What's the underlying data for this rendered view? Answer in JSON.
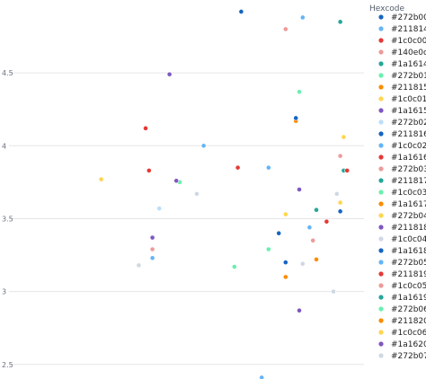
{
  "chart_data": {
    "type": "scatter",
    "title": "",
    "xlabel": "",
    "ylabel": "",
    "ylim": [
      2.4,
      5.0
    ],
    "y_ticks": [
      2.5,
      3,
      3.5,
      4,
      4.5
    ],
    "y_tick_labels": [
      "2.5",
      "3",
      "3.5",
      "4",
      "4.5"
    ],
    "x_axis_shown": false,
    "grid": "horizontal",
    "legend": {
      "title": "Hexcode",
      "placement": "right"
    },
    "series": [
      {
        "name": "#272b00",
        "color": "#1565c0",
        "x": [
          0.68
        ],
        "y": [
          4.92
        ]
      },
      {
        "name": "#211814",
        "color": "#64b5f6",
        "x": [
          0.86
        ],
        "y": [
          4.88
        ]
      },
      {
        "name": "#1c0c00",
        "color": "#e53935",
        "x": [
          0.4
        ],
        "y": [
          4.12
        ]
      },
      {
        "name": "#140e0c",
        "color": "#ef9a9a",
        "x": [
          0.81
        ],
        "y": [
          4.8
        ]
      },
      {
        "name": "#1a1614",
        "color": "#26a69a",
        "x": [
          0.97
        ],
        "y": [
          4.85
        ]
      },
      {
        "name": "#272b01",
        "color": "#69f0ae",
        "x": [
          0.85
        ],
        "y": [
          4.37
        ]
      },
      {
        "name": "#211815",
        "color": "#fb8c00",
        "x": [
          0.84
        ],
        "y": [
          4.17
        ]
      },
      {
        "name": "#1c0c01",
        "color": "#ffd54f",
        "x": [
          0.98
        ],
        "y": [
          4.06
        ]
      },
      {
        "name": "#1a1615",
        "color": "#7e57c2",
        "x": [
          0.47
        ],
        "y": [
          4.49
        ]
      },
      {
        "name": "#272b02",
        "color": "#bbdefb",
        "x": [
          0.44
        ],
        "y": [
          3.57
        ]
      },
      {
        "name": "#211816",
        "color": "#1565c0",
        "x": [
          0.84
        ],
        "y": [
          4.19
        ]
      },
      {
        "name": "#1c0c02",
        "color": "#64b5f6",
        "x": [
          0.57
        ],
        "y": [
          4.0
        ]
      },
      {
        "name": "#1a1616",
        "color": "#e53935",
        "x": [
          0.41
        ],
        "y": [
          3.83
        ]
      },
      {
        "name": "#272b03",
        "color": "#ef9a9a",
        "x": [
          0.97
        ],
        "y": [
          3.93
        ]
      },
      {
        "name": "#211817",
        "color": "#26a69a",
        "x": [
          0.98
        ],
        "y": [
          3.83
        ]
      },
      {
        "name": "#1c0c03",
        "color": "#69f0ae",
        "x": [
          0.5
        ],
        "y": [
          3.75
        ]
      },
      {
        "name": "#1a1617",
        "color": "#fb8c00",
        "x": [
          0.9
        ],
        "y": [
          3.22
        ]
      },
      {
        "name": "#272b04",
        "color": "#ffd54f",
        "x": [
          0.27
        ],
        "y": [
          3.77
        ]
      },
      {
        "name": "#211818",
        "color": "#7e57c2",
        "x": [
          0.49
        ],
        "y": [
          3.76
        ]
      },
      {
        "name": "#1c0c04",
        "color": "#cfd8e3",
        "x": [
          0.55
        ],
        "y": [
          3.67
        ]
      },
      {
        "name": "#1a1618",
        "color": "#1565c0",
        "x": [
          0.97
        ],
        "y": [
          3.55
        ]
      },
      {
        "name": "#272b05",
        "color": "#64b5f6",
        "x": [
          0.76
        ],
        "y": [
          3.85
        ]
      },
      {
        "name": "#211819",
        "color": "#e53935",
        "x": [
          0.67
        ],
        "y": [
          3.85
        ]
      },
      {
        "name": "#1c0c05",
        "color": "#ef9a9a",
        "x": [
          0.42
        ],
        "y": [
          3.29
        ]
      },
      {
        "name": "#1a1619",
        "color": "#26a69a",
        "x": [
          0.9
        ],
        "y": [
          3.56
        ]
      },
      {
        "name": "#272b06",
        "color": "#69f0ae",
        "x": [
          0.76
        ],
        "y": [
          3.29
        ]
      },
      {
        "name": "#211820",
        "color": "#fb8c00",
        "x": [
          0.81
        ],
        "y": [
          3.1
        ]
      },
      {
        "name": "#1c0c06",
        "color": "#ffd54f",
        "x": [
          0.97
        ],
        "y": [
          3.61
        ]
      },
      {
        "name": "#1a1620",
        "color": "#7e57c2",
        "x": [
          0.42
        ],
        "y": [
          3.37
        ]
      },
      {
        "name": "#272b07",
        "color": "#cfd8e3",
        "x": [
          0.96
        ],
        "y": [
          3.67
        ]
      }
    ],
    "extra_points": [
      {
        "color": "#e53935",
        "x": 0.99,
        "y": 3.83
      },
      {
        "color": "#e53935",
        "x": 0.93,
        "y": 3.48
      },
      {
        "color": "#1565c0",
        "x": 0.79,
        "y": 3.4
      },
      {
        "color": "#64b5f6",
        "x": 0.88,
        "y": 3.44
      },
      {
        "color": "#ffd54f",
        "x": 0.81,
        "y": 3.53
      },
      {
        "color": "#ef9a9a",
        "x": 0.89,
        "y": 3.35
      },
      {
        "color": "#1565c0",
        "x": 0.81,
        "y": 3.2
      },
      {
        "color": "#cfd8e3",
        "x": 0.86,
        "y": 3.19
      },
      {
        "color": "#7e57c2",
        "x": 0.85,
        "y": 3.7
      },
      {
        "color": "#7e57c2",
        "x": 0.85,
        "y": 2.87
      },
      {
        "color": "#64b5f6",
        "x": 0.74,
        "y": 2.41
      },
      {
        "color": "#cfd8e3",
        "x": 0.95,
        "y": 3.0
      },
      {
        "color": "#cfd8e3",
        "x": 0.38,
        "y": 3.18
      },
      {
        "color": "#64b5f6",
        "x": 0.42,
        "y": 3.23
      },
      {
        "color": "#69f0ae",
        "x": 0.66,
        "y": 3.17
      },
      {
        "color": "#ffd54f",
        "x": 0.98,
        "y": 4.06
      }
    ]
  }
}
